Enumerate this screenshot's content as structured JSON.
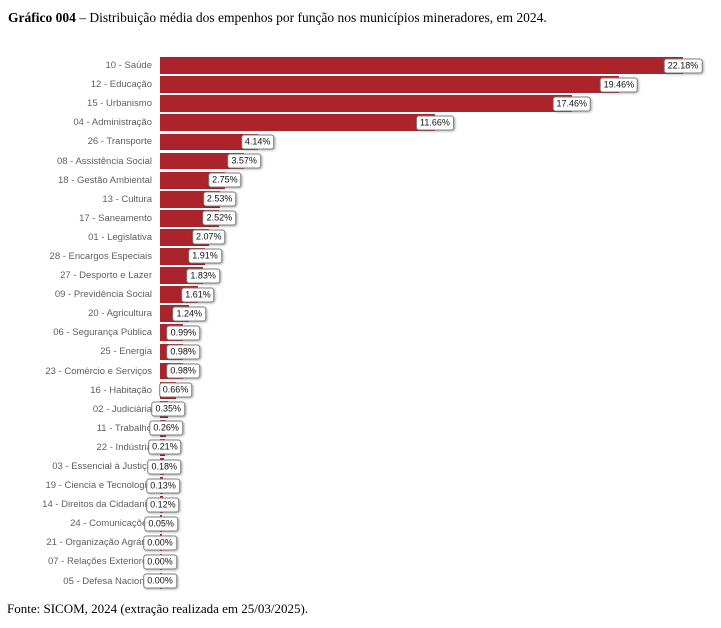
{
  "title": {
    "prefix": "Gráfico 004",
    "rest": " – Distribuição média dos empenhos por função nos municípios mineradores, em 2024."
  },
  "footer": "Fonte: SICOM, 2024 (extração realizada em 25/03/2025).",
  "colors": {
    "bar": "#AB242C",
    "category_label_text": "#5f5f5f",
    "value_badge_border": "#7f7f7f",
    "value_badge_background": "#ffffff",
    "value_badge_text": "#111111"
  },
  "chart_data": {
    "type": "bar",
    "orientation": "horizontal",
    "title": "Gráfico 004 – Distribuição média dos empenhos por função nos municípios mineradores, em 2024.",
    "xlabel": "",
    "ylabel": "",
    "value_unit": "%",
    "xlim": [
      0,
      23
    ],
    "grid": false,
    "legend": false,
    "data_labels": "outside-end-boxed",
    "categories": [
      "10 - Saúde",
      "12 - Educação",
      "15 - Urbanismo",
      "04 - Administração",
      "26 - Transporte",
      "08 - Assistência Social",
      "18 - Gestão Ambiental",
      "13 - Cultura",
      "17 - Saneamento",
      "01 - Legislativa",
      "28 - Encargos Especiais",
      "27 - Desporto e Lazer",
      "09 - Previdência Social",
      "20 - Agricultura",
      "06 - Segurança Pública",
      "25 - Energia",
      "23 - Comércio e Serviços",
      "16 - Habitação",
      "02 - Judiciária",
      "11 - Trabalho",
      "22 - Indústria",
      "03 - Essencial à Justiça",
      "19 - Ciencia e Tecnologia",
      "14 - Direitos da Cidadania",
      "24 - Comunicações",
      "21 - Organização Agrária",
      "07 - Relações Exteriores",
      "05 - Defesa Nacional"
    ],
    "values": [
      22.18,
      19.46,
      17.46,
      11.66,
      4.14,
      3.57,
      2.75,
      2.53,
      2.52,
      2.07,
      1.91,
      1.83,
      1.61,
      1.24,
      0.99,
      0.98,
      0.98,
      0.66,
      0.35,
      0.26,
      0.21,
      0.18,
      0.13,
      0.12,
      0.05,
      0.0,
      0.0,
      0.0
    ],
    "value_labels": [
      "22.18%",
      "19.46%",
      "17.46%",
      "11.66%",
      "4.14%",
      "3.57%",
      "2.75%",
      "2.53%",
      "2.52%",
      "2.07%",
      "1.91%",
      "1.83%",
      "1.61%",
      "1.24%",
      "0.99%",
      "0.98%",
      "0.98%",
      "0.66%",
      "0.35%",
      "0.26%",
      "0.21%",
      "0.18%",
      "0.13%",
      "0.12%",
      "0.05%",
      "0.00%",
      "0.00%",
      "0.00%"
    ]
  }
}
